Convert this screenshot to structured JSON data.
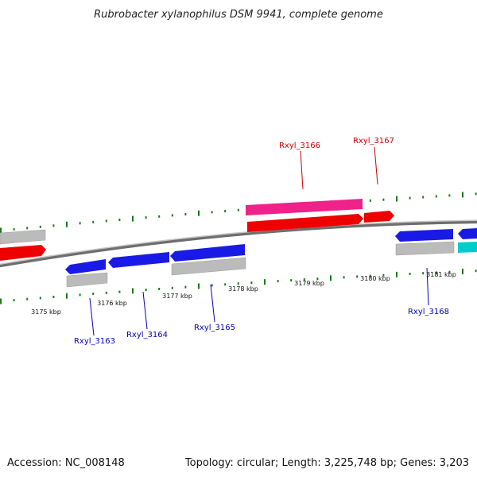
{
  "title": "Rubrobacter xylanophilus DSM 9941, complete genome",
  "footer": {
    "accession": "Accession: NC_008148",
    "info": "Topology: circular; Length: 3,225,748 bp; Genes: 3,203"
  },
  "colors": {
    "backbone": "#8a8a8a",
    "tick": "#1a7a1a",
    "forward_label": "#cc0000",
    "reverse_label": "#0000bb",
    "red": "#ee0000",
    "pink": "#ee2288",
    "blue": "#1a1ae6",
    "gray": "#bbbbbb",
    "cyan": "#00cccc"
  },
  "scale": {
    "unit": "kbp",
    "labels": [
      "3175 kbp",
      "3176 kbp",
      "3177 kbp",
      "3178 kbp",
      "3179 kbp",
      "3180 kbp",
      "3181 kbp"
    ]
  },
  "genes": [
    {
      "label": "Rxyl_3166",
      "strand": "forward"
    },
    {
      "label": "Rxyl_3167",
      "strand": "forward"
    },
    {
      "label": "Rxyl_3163",
      "strand": "reverse"
    },
    {
      "label": "Rxyl_3164",
      "strand": "reverse"
    },
    {
      "label": "Rxyl_3165",
      "strand": "reverse"
    },
    {
      "label": "Rxyl_3168",
      "strand": "reverse"
    }
  ]
}
